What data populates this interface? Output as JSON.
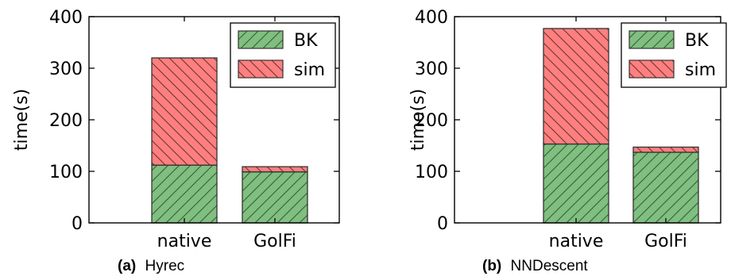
{
  "chart_data": [
    {
      "type": "bar",
      "stacked": true,
      "caption_label": "(a)",
      "caption_text": "Hyrec",
      "ylabel": "time(s)",
      "xlabel": "",
      "ylim": [
        0,
        400
      ],
      "yticks": [
        0,
        100,
        200,
        300,
        400
      ],
      "categories": [
        "native",
        "GolFi"
      ],
      "series": [
        {
          "name": "BK",
          "values": [
            112,
            99
          ],
          "color": "#7fbf7f",
          "hatch": "forward"
        },
        {
          "name": "sim",
          "values": [
            208,
            10
          ],
          "color": "#ff7f7f",
          "hatch": "back"
        }
      ],
      "legend": "top-right",
      "grid": false
    },
    {
      "type": "bar",
      "stacked": true,
      "caption_label": "(b)",
      "caption_text": "NNDescent",
      "ylabel": "time(s)",
      "xlabel": "",
      "ylim": [
        0,
        400
      ],
      "yticks": [
        0,
        100,
        200,
        300,
        400
      ],
      "categories": [
        "native",
        "GolFi"
      ],
      "series": [
        {
          "name": "BK",
          "values": [
            153,
            137
          ],
          "color": "#7fbf7f",
          "hatch": "forward"
        },
        {
          "name": "sim",
          "values": [
            224,
            10
          ],
          "color": "#ff7f7f",
          "hatch": "back"
        }
      ],
      "legend": "top-right",
      "grid": false
    }
  ]
}
